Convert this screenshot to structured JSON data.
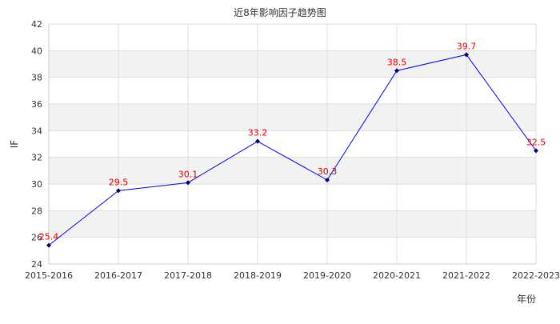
{
  "chart_data": {
    "type": "line",
    "title": "近8年影响因子趋势图",
    "xlabel": "年份",
    "ylabel": "IF",
    "categories": [
      "2015-2016",
      "2016-2017",
      "2017-2018",
      "2018-2019",
      "2019-2020",
      "2020-2021",
      "2021-2022",
      "2022-2023"
    ],
    "series": [
      {
        "values": [
          25.4,
          29.5,
          30.1,
          33.2,
          30.3,
          38.5,
          39.7,
          32.5
        ]
      }
    ],
    "data_labels": [
      "25.4",
      "29.5",
      "30.1",
      "33.2",
      "30.3",
      "38.5",
      "39.7",
      "32.5"
    ],
    "ylim": [
      24,
      42
    ],
    "yticks": [
      24,
      26,
      28,
      30,
      32,
      34,
      36,
      38,
      40,
      42
    ],
    "grid": true,
    "colors": {
      "line": "#0000ff",
      "marker": "#000066",
      "data_label": "#dd0000",
      "band_alt": "#f2f2f2",
      "band": "#ffffff",
      "grid": "#dddddd",
      "axis_text": "#333333"
    }
  }
}
